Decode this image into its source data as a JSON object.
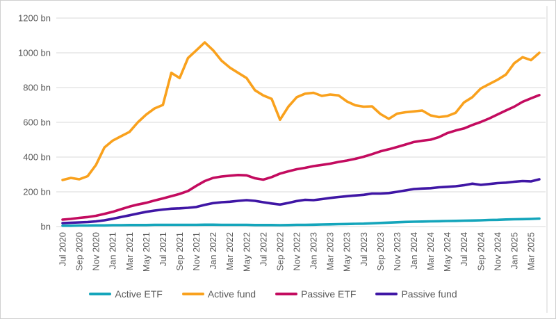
{
  "chart_data": {
    "type": "line",
    "title": "",
    "xlabel": "",
    "ylabel": "",
    "unit": "bn",
    "ylim": [
      0,
      1200
    ],
    "ytick_step": 200,
    "ytick_labels": [
      "bn",
      "200 bn",
      "400 bn",
      "600 bn",
      "800 bn",
      "1000 bn",
      "1200 bn"
    ],
    "grid": true,
    "legend_position": "bottom",
    "x_tick_every": 2,
    "x": [
      "Jul 2020",
      "Aug 2020",
      "Sep 2020",
      "Oct 2020",
      "Nov 2020",
      "Dec 2020",
      "Jan 2021",
      "Feb 2021",
      "Mar 2021",
      "Apr 2021",
      "May 2021",
      "Jun 2021",
      "Jul 2021",
      "Aug 2021",
      "Sep 2021",
      "Oct 2021",
      "Nov 2021",
      "Dec 2021",
      "Jan 2022",
      "Feb 2022",
      "Mar 2022",
      "Apr 2022",
      "May 2022",
      "Jun 2022",
      "Jul 2022",
      "Aug 2022",
      "Sep 2022",
      "Oct 2022",
      "Nov 2022",
      "Dec 2022",
      "Jan 2023",
      "Feb 2023",
      "Mar 2023",
      "Apr 2023",
      "May 2023",
      "Jun 2023",
      "Jul 2023",
      "Aug 2023",
      "Sep 2023",
      "Oct 2023",
      "Nov 2023",
      "Dec 2023",
      "Jan 2024",
      "Feb 2024",
      "Mar 2024",
      "Apr 2024",
      "May 2024",
      "Jun 2024",
      "Jul 2024",
      "Aug 2024",
      "Sep 2024",
      "Oct 2024",
      "Nov 2024",
      "Dec 2024",
      "Jan 2025",
      "Feb 2025",
      "Mar 2025",
      "Apr 2025"
    ],
    "series": [
      {
        "name": "Active ETF",
        "color": "#14a5bb",
        "values": [
          5,
          5,
          6,
          6,
          7,
          7,
          8,
          8,
          9,
          9,
          9,
          10,
          10,
          10,
          10,
          10,
          10,
          11,
          11,
          10,
          10,
          10,
          10,
          9,
          9,
          9,
          8,
          9,
          10,
          10,
          11,
          12,
          13,
          14,
          15,
          16,
          17,
          19,
          21,
          23,
          25,
          27,
          28,
          29,
          30,
          31,
          32,
          33,
          34,
          35,
          36,
          38,
          39,
          41,
          42,
          43,
          44,
          46
        ]
      },
      {
        "name": "Active fund",
        "color": "#f9a11d",
        "values": [
          268,
          280,
          272,
          290,
          355,
          455,
          495,
          520,
          545,
          600,
          645,
          680,
          700,
          885,
          855,
          970,
          1015,
          1060,
          1015,
          955,
          915,
          885,
          855,
          785,
          755,
          735,
          615,
          690,
          745,
          765,
          770,
          752,
          760,
          755,
          720,
          698,
          690,
          692,
          648,
          620,
          650,
          658,
          663,
          668,
          640,
          630,
          636,
          655,
          715,
          745,
          795,
          820,
          845,
          875,
          940,
          975,
          958,
          1000
        ]
      },
      {
        "name": "Passive ETF",
        "color": "#c30b5f",
        "values": [
          40,
          44,
          50,
          55,
          62,
          73,
          85,
          100,
          115,
          127,
          137,
          150,
          162,
          175,
          188,
          205,
          235,
          262,
          280,
          288,
          293,
          297,
          295,
          278,
          270,
          285,
          305,
          318,
          330,
          338,
          348,
          355,
          362,
          372,
          380,
          390,
          402,
          417,
          433,
          445,
          458,
          472,
          487,
          494,
          500,
          515,
          538,
          553,
          565,
          585,
          602,
          622,
          645,
          668,
          690,
          718,
          738,
          757
        ]
      },
      {
        "name": "Passive fund",
        "color": "#3f16a5",
        "values": [
          20,
          22,
          24,
          26,
          30,
          36,
          45,
          55,
          65,
          75,
          85,
          92,
          98,
          103,
          105,
          108,
          113,
          125,
          135,
          140,
          143,
          148,
          152,
          148,
          140,
          133,
          127,
          136,
          147,
          154,
          152,
          158,
          165,
          170,
          175,
          179,
          183,
          190,
          190,
          193,
          200,
          208,
          216,
          219,
          221,
          226,
          229,
          232,
          238,
          247,
          240,
          245,
          250,
          253,
          258,
          262,
          260,
          272
        ]
      }
    ],
    "style": {
      "grid_color": "#d9d9d9",
      "axis_text_color": "#595959",
      "frame_border_color": "#cfcfcf",
      "right_edge_line_color": "#e2e2e2",
      "background": "#ffffff"
    }
  }
}
